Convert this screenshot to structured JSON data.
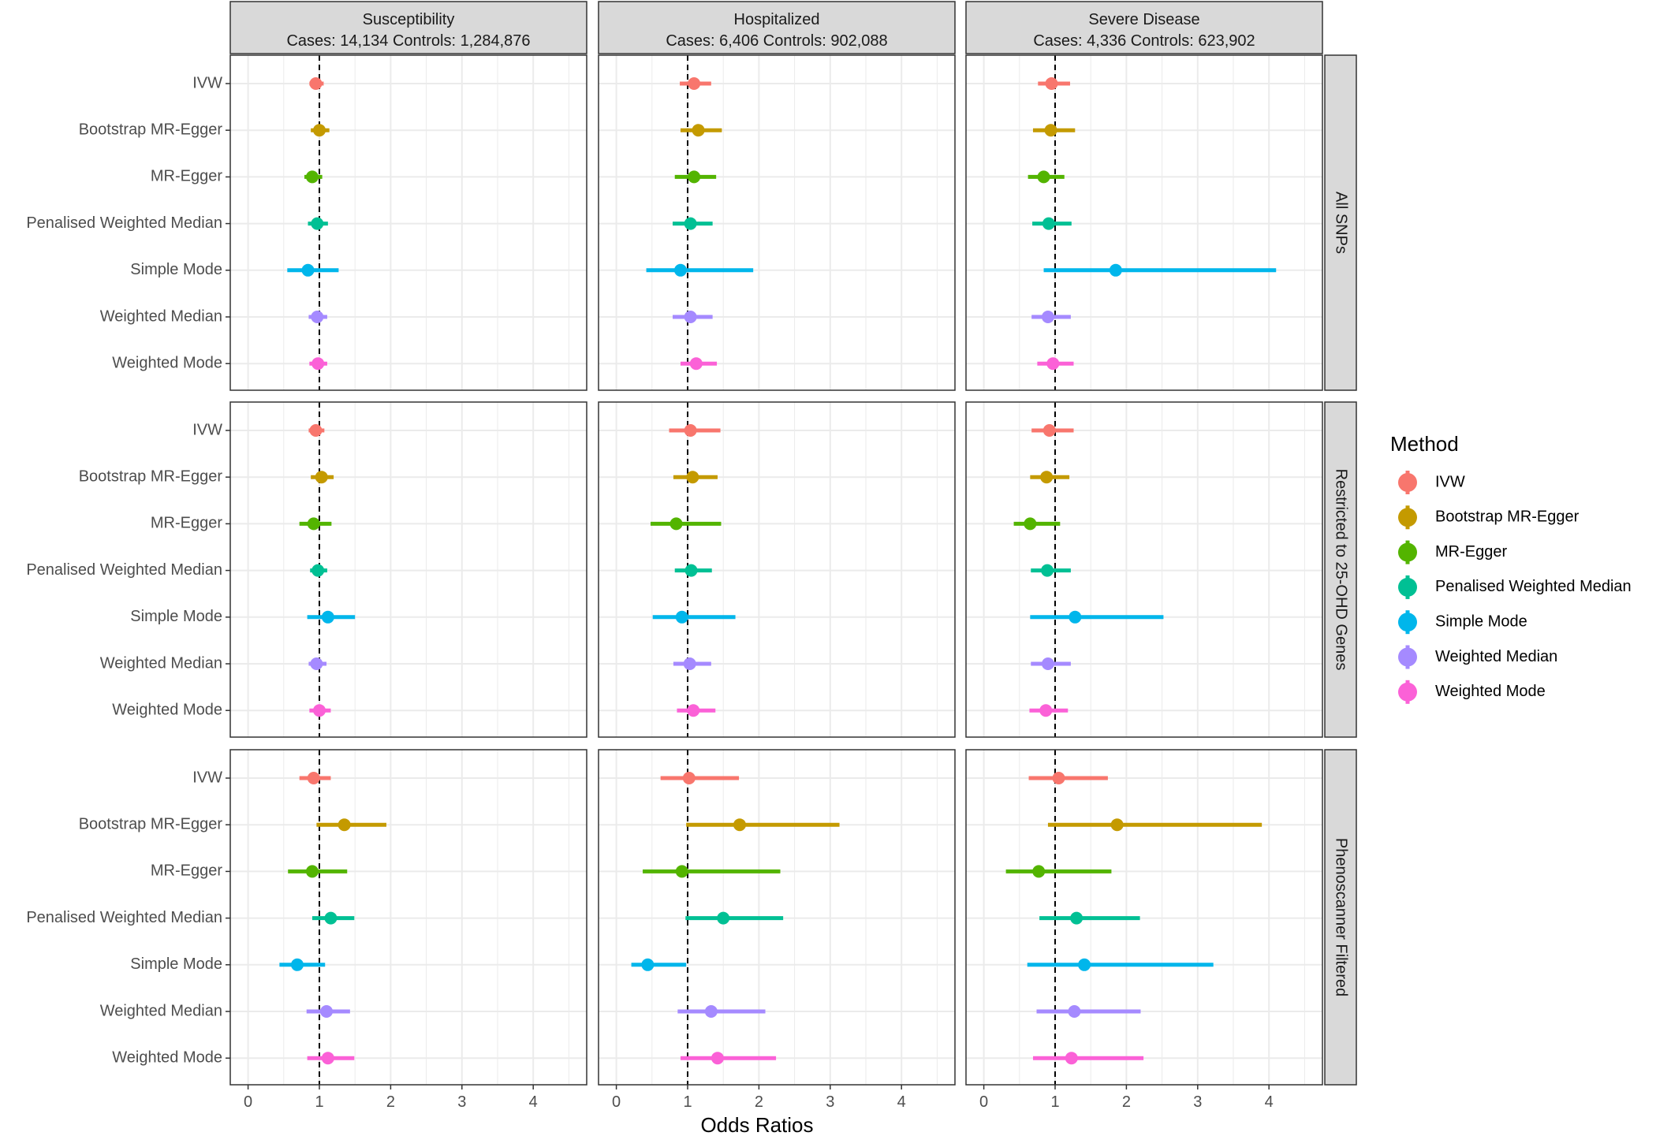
{
  "chart_data": {
    "type": "forest",
    "xlabel": "Odds Ratios",
    "xlim": [
      -0.25,
      4.75
    ],
    "xticks": [
      0,
      1,
      2,
      3,
      4
    ],
    "reference_line": 1,
    "legend": {
      "title": "Method",
      "position": "right",
      "entries": [
        "IVW",
        "Bootstrap MR-Egger",
        "MR-Egger",
        "Penalised Weighted Median",
        "Simple Mode",
        "Weighted Median",
        "Weighted Mode"
      ]
    },
    "methods": [
      "IVW",
      "Bootstrap MR-Egger",
      "MR-Egger",
      "Penalised Weighted Median",
      "Simple Mode",
      "Weighted Median",
      "Weighted Mode"
    ],
    "colors": [
      "#F8766D",
      "#C49A00",
      "#53B400",
      "#00C094",
      "#00B6EB",
      "#A58AFF",
      "#FB61D7"
    ],
    "columns": [
      {
        "title": "Susceptibility",
        "subtitle": "Cases: 14,134 Controls: 1,284,876"
      },
      {
        "title": "Hospitalized",
        "subtitle": "Cases: 6,406 Controls: 902,088"
      },
      {
        "title": "Severe Disease",
        "subtitle": "Cases: 4,336 Controls: 623,902"
      }
    ],
    "rows": [
      "All SNPs",
      "Restricted to 25-OHD Genes",
      "Phenoscanner Filtered"
    ],
    "estimates": [
      [
        [
          [
            0.95,
            0.86,
            1.06
          ],
          [
            1.0,
            0.88,
            1.14
          ],
          [
            0.9,
            0.79,
            1.04
          ],
          [
            0.97,
            0.84,
            1.12
          ],
          [
            0.84,
            0.55,
            1.27
          ],
          [
            0.97,
            0.85,
            1.11
          ],
          [
            0.98,
            0.86,
            1.11
          ]
        ],
        [
          [
            1.09,
            0.89,
            1.33
          ],
          [
            1.15,
            0.9,
            1.48
          ],
          [
            1.09,
            0.82,
            1.4
          ],
          [
            1.04,
            0.79,
            1.35
          ],
          [
            0.9,
            0.42,
            1.92
          ],
          [
            1.04,
            0.79,
            1.35
          ],
          [
            1.12,
            0.9,
            1.41
          ]
        ],
        [
          [
            0.95,
            0.76,
            1.21
          ],
          [
            0.94,
            0.69,
            1.28
          ],
          [
            0.84,
            0.62,
            1.13
          ],
          [
            0.91,
            0.68,
            1.23
          ],
          [
            1.85,
            0.84,
            4.1
          ],
          [
            0.9,
            0.67,
            1.22
          ],
          [
            0.97,
            0.75,
            1.26
          ]
        ]
      ],
      [
        [
          [
            0.95,
            0.85,
            1.07
          ],
          [
            1.03,
            0.88,
            1.2
          ],
          [
            0.92,
            0.72,
            1.17
          ],
          [
            0.98,
            0.87,
            1.11
          ],
          [
            1.12,
            0.83,
            1.5
          ],
          [
            0.96,
            0.85,
            1.1
          ],
          [
            1.0,
            0.86,
            1.16
          ]
        ],
        [
          [
            1.04,
            0.74,
            1.46
          ],
          [
            1.07,
            0.8,
            1.42
          ],
          [
            0.84,
            0.48,
            1.47
          ],
          [
            1.05,
            0.82,
            1.34
          ],
          [
            0.92,
            0.51,
            1.67
          ],
          [
            1.03,
            0.8,
            1.33
          ],
          [
            1.08,
            0.85,
            1.39
          ]
        ],
        [
          [
            0.92,
            0.67,
            1.26
          ],
          [
            0.88,
            0.65,
            1.2
          ],
          [
            0.65,
            0.42,
            1.07
          ],
          [
            0.89,
            0.66,
            1.22
          ],
          [
            1.28,
            0.65,
            2.52
          ],
          [
            0.9,
            0.66,
            1.22
          ],
          [
            0.87,
            0.64,
            1.18
          ]
        ]
      ],
      [
        [
          [
            0.92,
            0.72,
            1.16
          ],
          [
            1.35,
            0.96,
            1.94
          ],
          [
            0.9,
            0.56,
            1.39
          ],
          [
            1.16,
            0.9,
            1.49
          ],
          [
            0.69,
            0.44,
            1.08
          ],
          [
            1.1,
            0.82,
            1.43
          ],
          [
            1.12,
            0.83,
            1.49
          ]
        ],
        [
          [
            1.02,
            0.62,
            1.72
          ],
          [
            1.73,
            0.98,
            3.13
          ],
          [
            0.92,
            0.37,
            2.3
          ],
          [
            1.5,
            0.97,
            2.34
          ],
          [
            0.44,
            0.21,
            0.98
          ],
          [
            1.33,
            0.86,
            2.09
          ],
          [
            1.42,
            0.9,
            2.24
          ]
        ],
        [
          [
            1.05,
            0.63,
            1.74
          ],
          [
            1.87,
            0.9,
            3.9
          ],
          [
            0.77,
            0.31,
            1.79
          ],
          [
            1.3,
            0.78,
            2.19
          ],
          [
            1.41,
            0.61,
            3.22
          ],
          [
            1.27,
            0.74,
            2.2
          ],
          [
            1.23,
            0.69,
            2.24
          ]
        ]
      ]
    ]
  }
}
